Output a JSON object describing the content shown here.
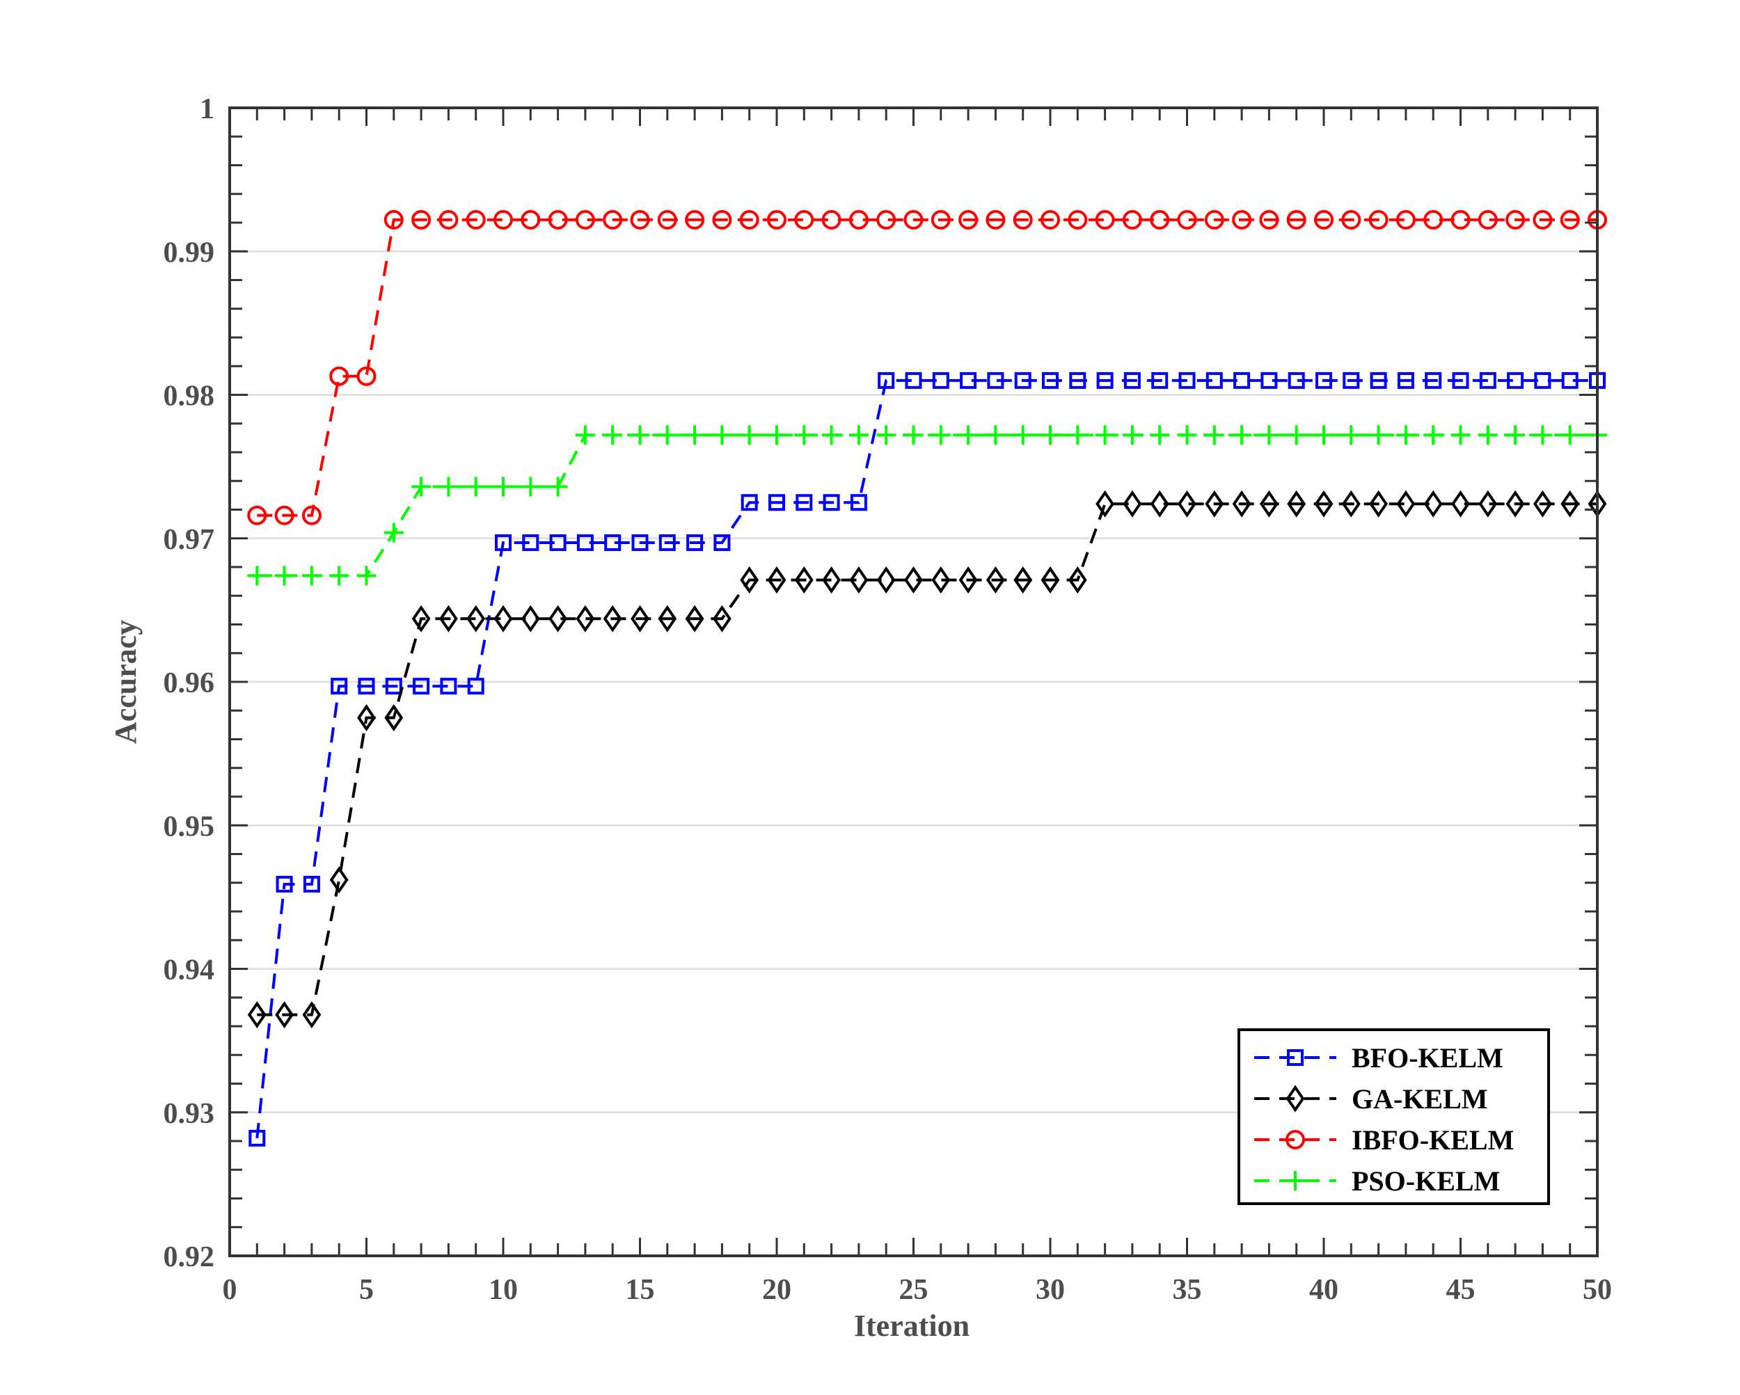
{
  "chart_data": {
    "type": "line",
    "title": "",
    "xlabel": "Iteration",
    "ylabel": "Accuracy",
    "xlim": [
      0,
      50
    ],
    "ylim": [
      0.92,
      1
    ],
    "xticks": [
      0,
      5,
      10,
      15,
      20,
      25,
      30,
      35,
      40,
      45,
      50
    ],
    "xtick_labels": [
      "0",
      "5",
      "10",
      "15",
      "20",
      "25",
      "30",
      "35",
      "40",
      "45",
      "50"
    ],
    "yticks": [
      0.92,
      0.93,
      0.94,
      0.95,
      0.96,
      0.97,
      0.98,
      0.99,
      1
    ],
    "ytick_labels": [
      "0.92",
      "0.93",
      "0.94",
      "0.95",
      "0.96",
      "0.97",
      "0.98",
      "0.99",
      "1"
    ],
    "grid": "horizontal",
    "legend_position": "bottom-right",
    "series": [
      {
        "name": "BFO-KELM",
        "color": "#0000ff",
        "marker": "square",
        "x_start": 1,
        "values": [
          0.9282,
          0.9459,
          0.9459,
          0.9597,
          0.9597,
          0.9597,
          0.9597,
          0.9597,
          0.9597,
          0.9697,
          0.9697,
          0.9697,
          0.9697,
          0.9697,
          0.9697,
          0.9697,
          0.9697,
          0.9697,
          0.9725,
          0.9725,
          0.9725,
          0.9725,
          0.9725,
          0.981,
          0.981,
          0.981,
          0.981,
          0.981,
          0.981,
          0.981,
          0.981,
          0.981,
          0.981,
          0.981,
          0.981,
          0.981,
          0.981,
          0.981,
          0.981,
          0.981,
          0.981,
          0.981,
          0.981,
          0.981,
          0.981,
          0.981,
          0.981,
          0.981,
          0.981,
          0.981
        ]
      },
      {
        "name": "GA-KELM",
        "color": "#000000",
        "marker": "diamond",
        "x_start": 1,
        "values": [
          0.9368,
          0.9368,
          0.9368,
          0.9462,
          0.9575,
          0.9575,
          0.9644,
          0.9644,
          0.9644,
          0.9644,
          0.9644,
          0.9644,
          0.9644,
          0.9644,
          0.9644,
          0.9644,
          0.9644,
          0.9644,
          0.9671,
          0.9671,
          0.9671,
          0.9671,
          0.9671,
          0.9671,
          0.9671,
          0.9671,
          0.9671,
          0.9671,
          0.9671,
          0.9671,
          0.9671,
          0.9724,
          0.9724,
          0.9724,
          0.9724,
          0.9724,
          0.9724,
          0.9724,
          0.9724,
          0.9724,
          0.9724,
          0.9724,
          0.9724,
          0.9724,
          0.9724,
          0.9724,
          0.9724,
          0.9724,
          0.9724,
          0.9724
        ]
      },
      {
        "name": "IBFO-KELM",
        "color": "#ff0000",
        "marker": "circle",
        "x_start": 1,
        "values": [
          0.9716,
          0.9716,
          0.9716,
          0.9813,
          0.9813,
          0.9922,
          0.9922,
          0.9922,
          0.9922,
          0.9922,
          0.9922,
          0.9922,
          0.9922,
          0.9922,
          0.9922,
          0.9922,
          0.9922,
          0.9922,
          0.9922,
          0.9922,
          0.9922,
          0.9922,
          0.9922,
          0.9922,
          0.9922,
          0.9922,
          0.9922,
          0.9922,
          0.9922,
          0.9922,
          0.9922,
          0.9922,
          0.9922,
          0.9922,
          0.9922,
          0.9922,
          0.9922,
          0.9922,
          0.9922,
          0.9922,
          0.9922,
          0.9922,
          0.9922,
          0.9922,
          0.9922,
          0.9922,
          0.9922,
          0.9922,
          0.9922,
          0.9922
        ]
      },
      {
        "name": "PSO-KELM",
        "color": "#00ff00",
        "marker": "plus",
        "x_start": 1,
        "values": [
          0.9674,
          0.9674,
          0.9674,
          0.9674,
          0.9674,
          0.9704,
          0.9736,
          0.9736,
          0.9736,
          0.9736,
          0.9736,
          0.9736,
          0.9772,
          0.9772,
          0.9772,
          0.9772,
          0.9772,
          0.9772,
          0.9772,
          0.9772,
          0.9772,
          0.9772,
          0.9772,
          0.9772,
          0.9772,
          0.9772,
          0.9772,
          0.9772,
          0.9772,
          0.9772,
          0.9772,
          0.9772,
          0.9772,
          0.9772,
          0.9772,
          0.9772,
          0.9772,
          0.9772,
          0.9772,
          0.9772,
          0.9772,
          0.9772,
          0.9772,
          0.9772,
          0.9772,
          0.9772,
          0.9772,
          0.9772,
          0.9772,
          0.9772
        ]
      }
    ]
  }
}
